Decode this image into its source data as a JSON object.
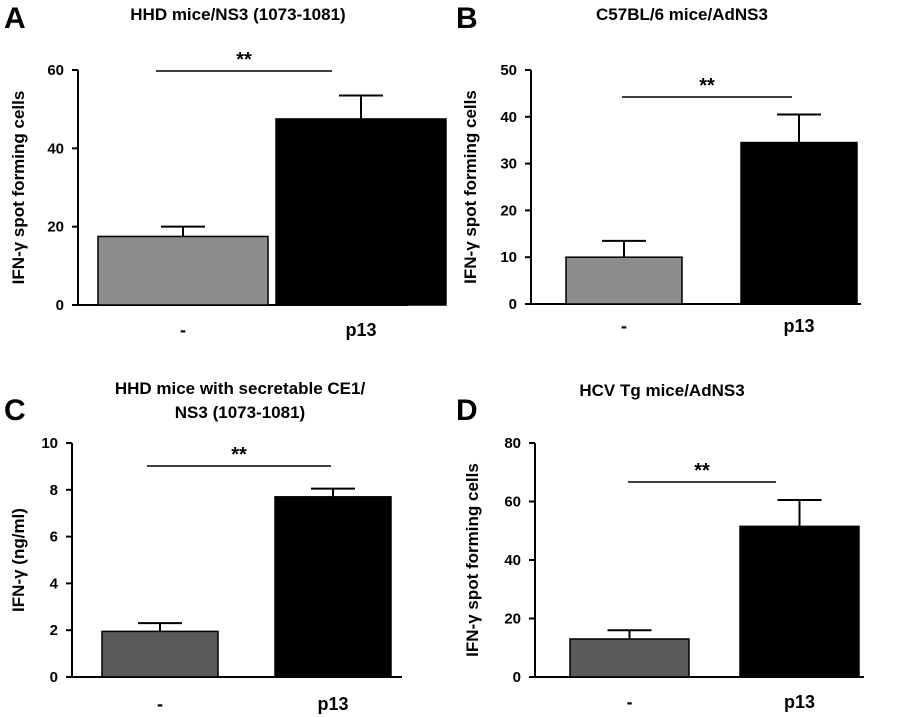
{
  "chart_data": [
    {
      "panel": "A",
      "type": "bar",
      "title_lines": [
        "HHD mice/NS3 (1073-1081)"
      ],
      "ylabel": "IFN-γ spot forming cells",
      "categories": [
        "-",
        "p13"
      ],
      "values": [
        17.5,
        47.5
      ],
      "errors": [
        2.5,
        6
      ],
      "colors": [
        "#8c8c8c",
        "#000000"
      ],
      "ylim": [
        0,
        60
      ],
      "yticks": [
        0,
        20,
        40,
        60
      ],
      "significance": "**"
    },
    {
      "panel": "B",
      "type": "bar",
      "title_lines": [
        "C57BL/6 mice/AdNS3"
      ],
      "ylabel": "IFN-γ spot forming cells",
      "categories": [
        "-",
        "p13"
      ],
      "values": [
        10,
        34.5
      ],
      "errors": [
        3.5,
        6
      ],
      "colors": [
        "#8c8c8c",
        "#000000"
      ],
      "ylim": [
        0,
        50
      ],
      "yticks": [
        0,
        10,
        20,
        30,
        40,
        50
      ],
      "significance": "**"
    },
    {
      "panel": "C",
      "type": "bar",
      "title_lines": [
        "HHD mice with secretable CE1/",
        "NS3 (1073-1081)"
      ],
      "ylabel": "IFN-γ (ng/ml)",
      "categories": [
        "-",
        "p13"
      ],
      "values": [
        1.95,
        7.7
      ],
      "errors": [
        0.35,
        0.35
      ],
      "colors": [
        "#5a5a5a",
        "#000000"
      ],
      "ylim": [
        0,
        10
      ],
      "yticks": [
        0,
        2,
        4,
        6,
        8,
        10
      ],
      "significance": "**"
    },
    {
      "panel": "D",
      "type": "bar",
      "title_lines": [
        "HCV Tg mice/AdNS3"
      ],
      "ylabel": "IFN-γ spot forming cells",
      "categories": [
        "-",
        "p13"
      ],
      "values": [
        13,
        51.5
      ],
      "errors": [
        3,
        9
      ],
      "colors": [
        "#5a5a5a",
        "#000000"
      ],
      "ylim": [
        0,
        80
      ],
      "yticks": [
        0,
        20,
        40,
        60,
        80
      ],
      "significance": "**"
    }
  ]
}
